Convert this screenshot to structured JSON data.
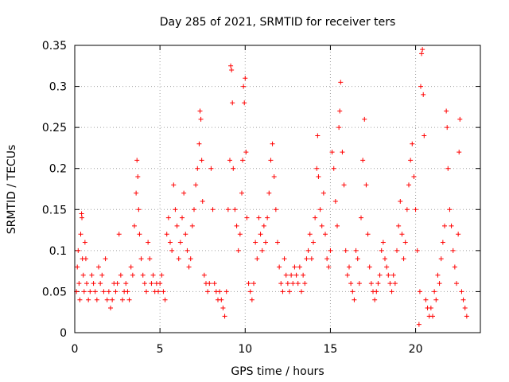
{
  "chart_data": {
    "type": "scatter",
    "title": "Day 285 of 2021, SRMTID for receiver ters",
    "xlabel": "GPS time / hours",
    "ylabel": "SRMTID / TECUs",
    "xlim": [
      0,
      23.8
    ],
    "ylim": [
      0,
      0.35
    ],
    "xticks": [
      0,
      5,
      10,
      15,
      20
    ],
    "xtick_labels": [
      "0",
      "5",
      "10",
      "15",
      "20"
    ],
    "yticks": [
      0,
      0.05,
      0.1,
      0.15,
      0.2,
      0.25,
      0.3,
      0.35
    ],
    "ytick_labels": [
      "0",
      "0.05",
      "0.1",
      "0.15",
      "0.2",
      "0.25",
      "0.3",
      "0.35"
    ],
    "grid": true,
    "marker": "plus",
    "color": "#ff0000",
    "series": [
      {
        "name": "SRMTID",
        "points": [
          [
            0.1,
            0.05
          ],
          [
            0.15,
            0.08
          ],
          [
            0.2,
            0.1
          ],
          [
            0.25,
            0.06
          ],
          [
            0.3,
            0.04
          ],
          [
            0.35,
            0.12
          ],
          [
            0.4,
            0.145
          ],
          [
            0.42,
            0.14
          ],
          [
            0.45,
            0.09
          ],
          [
            0.5,
            0.07
          ],
          [
            0.55,
            0.05
          ],
          [
            0.6,
            0.11
          ],
          [
            0.65,
            0.09
          ],
          [
            0.7,
            0.06
          ],
          [
            0.8,
            0.04
          ],
          [
            0.9,
            0.05
          ],
          [
            1.0,
            0.07
          ],
          [
            1.1,
            0.06
          ],
          [
            1.2,
            0.05
          ],
          [
            1.3,
            0.04
          ],
          [
            1.4,
            0.08
          ],
          [
            1.5,
            0.06
          ],
          [
            1.6,
            0.07
          ],
          [
            1.7,
            0.05
          ],
          [
            1.8,
            0.09
          ],
          [
            1.9,
            0.04
          ],
          [
            2.0,
            0.05
          ],
          [
            2.1,
            0.03
          ],
          [
            2.2,
            0.04
          ],
          [
            2.3,
            0.06
          ],
          [
            2.4,
            0.05
          ],
          [
            2.5,
            0.06
          ],
          [
            2.6,
            0.12
          ],
          [
            2.7,
            0.07
          ],
          [
            2.8,
            0.04
          ],
          [
            2.9,
            0.05
          ],
          [
            3.0,
            0.06
          ],
          [
            3.1,
            0.05
          ],
          [
            3.2,
            0.04
          ],
          [
            3.3,
            0.08
          ],
          [
            3.4,
            0.07
          ],
          [
            3.5,
            0.13
          ],
          [
            3.6,
            0.17
          ],
          [
            3.65,
            0.21
          ],
          [
            3.7,
            0.19
          ],
          [
            3.75,
            0.15
          ],
          [
            3.8,
            0.12
          ],
          [
            3.9,
            0.09
          ],
          [
            4.0,
            0.07
          ],
          [
            4.1,
            0.06
          ],
          [
            4.2,
            0.05
          ],
          [
            4.3,
            0.11
          ],
          [
            4.4,
            0.09
          ],
          [
            4.5,
            0.06
          ],
          [
            4.6,
            0.07
          ],
          [
            4.7,
            0.05
          ],
          [
            4.8,
            0.06
          ],
          [
            4.9,
            0.05
          ],
          [
            5.0,
            0.06
          ],
          [
            5.1,
            0.07
          ],
          [
            5.2,
            0.05
          ],
          [
            5.3,
            0.04
          ],
          [
            5.4,
            0.12
          ],
          [
            5.5,
            0.14
          ],
          [
            5.6,
            0.11
          ],
          [
            5.7,
            0.1
          ],
          [
            5.8,
            0.18
          ],
          [
            5.9,
            0.15
          ],
          [
            6.0,
            0.13
          ],
          [
            6.1,
            0.09
          ],
          [
            6.2,
            0.11
          ],
          [
            6.3,
            0.14
          ],
          [
            6.4,
            0.17
          ],
          [
            6.5,
            0.12
          ],
          [
            6.6,
            0.1
          ],
          [
            6.7,
            0.08
          ],
          [
            6.8,
            0.09
          ],
          [
            6.9,
            0.13
          ],
          [
            7.0,
            0.15
          ],
          [
            7.1,
            0.18
          ],
          [
            7.2,
            0.2
          ],
          [
            7.3,
            0.23
          ],
          [
            7.35,
            0.27
          ],
          [
            7.4,
            0.26
          ],
          [
            7.45,
            0.21
          ],
          [
            7.5,
            0.16
          ],
          [
            7.6,
            0.07
          ],
          [
            7.7,
            0.06
          ],
          [
            7.8,
            0.05
          ],
          [
            7.9,
            0.06
          ],
          [
            8.0,
            0.2
          ],
          [
            8.1,
            0.15
          ],
          [
            8.2,
            0.06
          ],
          [
            8.3,
            0.05
          ],
          [
            8.4,
            0.04
          ],
          [
            8.5,
            0.05
          ],
          [
            8.6,
            0.04
          ],
          [
            8.7,
            0.03
          ],
          [
            8.8,
            0.02
          ],
          [
            8.9,
            0.05
          ],
          [
            9.0,
            0.15
          ],
          [
            9.1,
            0.21
          ],
          [
            9.15,
            0.325
          ],
          [
            9.2,
            0.32
          ],
          [
            9.25,
            0.28
          ],
          [
            9.3,
            0.2
          ],
          [
            9.4,
            0.15
          ],
          [
            9.5,
            0.13
          ],
          [
            9.6,
            0.1
          ],
          [
            9.7,
            0.12
          ],
          [
            9.8,
            0.17
          ],
          [
            9.85,
            0.21
          ],
          [
            9.9,
            0.3
          ],
          [
            9.95,
            0.28
          ],
          [
            10.0,
            0.31
          ],
          [
            10.05,
            0.22
          ],
          [
            10.1,
            0.14
          ],
          [
            10.2,
            0.06
          ],
          [
            10.3,
            0.05
          ],
          [
            10.4,
            0.04
          ],
          [
            10.5,
            0.06
          ],
          [
            10.6,
            0.11
          ],
          [
            10.7,
            0.09
          ],
          [
            10.8,
            0.14
          ],
          [
            10.9,
            0.12
          ],
          [
            11.0,
            0.1
          ],
          [
            11.1,
            0.13
          ],
          [
            11.2,
            0.11
          ],
          [
            11.3,
            0.14
          ],
          [
            11.4,
            0.17
          ],
          [
            11.5,
            0.21
          ],
          [
            11.6,
            0.23
          ],
          [
            11.7,
            0.19
          ],
          [
            11.8,
            0.15
          ],
          [
            11.9,
            0.11
          ],
          [
            12.0,
            0.08
          ],
          [
            12.1,
            0.06
          ],
          [
            12.2,
            0.05
          ],
          [
            12.3,
            0.09
          ],
          [
            12.4,
            0.07
          ],
          [
            12.5,
            0.06
          ],
          [
            12.6,
            0.05
          ],
          [
            12.7,
            0.07
          ],
          [
            12.8,
            0.06
          ],
          [
            12.9,
            0.08
          ],
          [
            13.0,
            0.07
          ],
          [
            13.1,
            0.06
          ],
          [
            13.2,
            0.08
          ],
          [
            13.3,
            0.05
          ],
          [
            13.4,
            0.07
          ],
          [
            13.5,
            0.06
          ],
          [
            13.6,
            0.09
          ],
          [
            13.7,
            0.1
          ],
          [
            13.8,
            0.12
          ],
          [
            13.9,
            0.09
          ],
          [
            14.0,
            0.11
          ],
          [
            14.1,
            0.14
          ],
          [
            14.2,
            0.2
          ],
          [
            14.25,
            0.24
          ],
          [
            14.3,
            0.19
          ],
          [
            14.4,
            0.15
          ],
          [
            14.5,
            0.13
          ],
          [
            14.6,
            0.17
          ],
          [
            14.7,
            0.12
          ],
          [
            14.8,
            0.09
          ],
          [
            14.9,
            0.08
          ],
          [
            15.0,
            0.1
          ],
          [
            15.1,
            0.22
          ],
          [
            15.2,
            0.2
          ],
          [
            15.3,
            0.16
          ],
          [
            15.4,
            0.13
          ],
          [
            15.5,
            0.25
          ],
          [
            15.55,
            0.27
          ],
          [
            15.6,
            0.305
          ],
          [
            15.7,
            0.22
          ],
          [
            15.8,
            0.18
          ],
          [
            15.9,
            0.1
          ],
          [
            16.0,
            0.07
          ],
          [
            16.1,
            0.08
          ],
          [
            16.2,
            0.06
          ],
          [
            16.3,
            0.05
          ],
          [
            16.4,
            0.04
          ],
          [
            16.5,
            0.1
          ],
          [
            16.6,
            0.09
          ],
          [
            16.7,
            0.06
          ],
          [
            16.8,
            0.14
          ],
          [
            16.9,
            0.21
          ],
          [
            17.0,
            0.26
          ],
          [
            17.1,
            0.18
          ],
          [
            17.2,
            0.12
          ],
          [
            17.3,
            0.08
          ],
          [
            17.4,
            0.06
          ],
          [
            17.5,
            0.05
          ],
          [
            17.6,
            0.04
          ],
          [
            17.7,
            0.05
          ],
          [
            17.8,
            0.06
          ],
          [
            17.9,
            0.07
          ],
          [
            18.0,
            0.1
          ],
          [
            18.1,
            0.11
          ],
          [
            18.2,
            0.09
          ],
          [
            18.3,
            0.08
          ],
          [
            18.4,
            0.07
          ],
          [
            18.5,
            0.06
          ],
          [
            18.6,
            0.05
          ],
          [
            18.7,
            0.07
          ],
          [
            18.8,
            0.06
          ],
          [
            18.9,
            0.1
          ],
          [
            19.0,
            0.13
          ],
          [
            19.1,
            0.16
          ],
          [
            19.2,
            0.12
          ],
          [
            19.3,
            0.09
          ],
          [
            19.4,
            0.11
          ],
          [
            19.5,
            0.15
          ],
          [
            19.6,
            0.18
          ],
          [
            19.7,
            0.21
          ],
          [
            19.8,
            0.23
          ],
          [
            19.9,
            0.19
          ],
          [
            20.0,
            0.15
          ],
          [
            20.1,
            0.1
          ],
          [
            20.2,
            0.01
          ],
          [
            20.25,
            0.05
          ],
          [
            20.3,
            0.3
          ],
          [
            20.35,
            0.34
          ],
          [
            20.4,
            0.345
          ],
          [
            20.45,
            0.29
          ],
          [
            20.5,
            0.24
          ],
          [
            20.6,
            0.04
          ],
          [
            20.7,
            0.03
          ],
          [
            20.8,
            0.02
          ],
          [
            20.9,
            0.03
          ],
          [
            21.0,
            0.02
          ],
          [
            21.1,
            0.05
          ],
          [
            21.2,
            0.04
          ],
          [
            21.3,
            0.07
          ],
          [
            21.4,
            0.06
          ],
          [
            21.5,
            0.09
          ],
          [
            21.6,
            0.11
          ],
          [
            21.7,
            0.13
          ],
          [
            21.8,
            0.27
          ],
          [
            21.85,
            0.25
          ],
          [
            21.9,
            0.2
          ],
          [
            22.0,
            0.15
          ],
          [
            22.1,
            0.13
          ],
          [
            22.2,
            0.1
          ],
          [
            22.3,
            0.08
          ],
          [
            22.4,
            0.06
          ],
          [
            22.5,
            0.12
          ],
          [
            22.55,
            0.22
          ],
          [
            22.6,
            0.26
          ],
          [
            22.7,
            0.05
          ],
          [
            22.8,
            0.04
          ],
          [
            22.9,
            0.03
          ],
          [
            23.0,
            0.02
          ]
        ]
      }
    ]
  }
}
